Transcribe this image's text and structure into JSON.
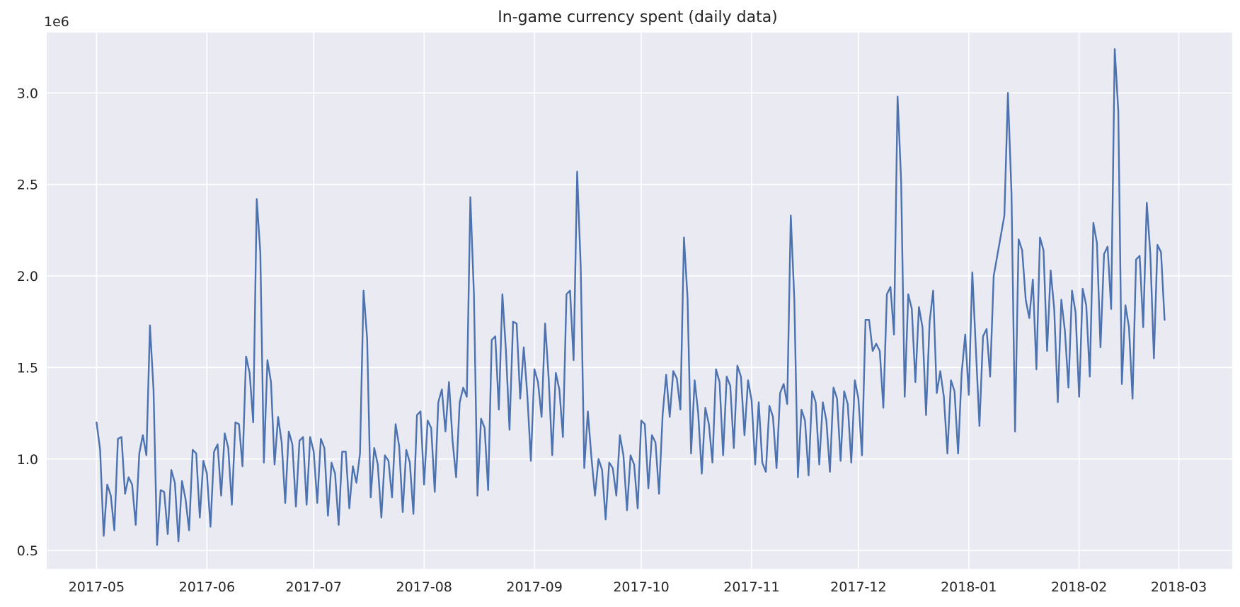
{
  "chart_data": {
    "type": "line",
    "title": "In-game currency spent (daily data)",
    "xlabel": "",
    "ylabel": "",
    "y_offset_label": "1e6",
    "grid": true,
    "legend": "none",
    "colors": {
      "background": "#eaeaf2",
      "grid": "#ffffff",
      "line": "#4c72b0",
      "text": "#262626"
    },
    "xlim": [
      "2017-04-17",
      "2018-03-16"
    ],
    "ylim": [
      0.4,
      3.33
    ],
    "x_tick_labels": [
      "2017-05",
      "2017-06",
      "2017-07",
      "2017-08",
      "2017-09",
      "2017-10",
      "2017-11",
      "2017-12",
      "2018-01",
      "2018-02",
      "2018-03"
    ],
    "y_tick_labels": [
      "0.5",
      "1.0",
      "1.5",
      "2.0",
      "2.5",
      "3.0"
    ],
    "start_date": "2017-05-01",
    "series": [
      {
        "values": [
          1.2,
          1.05,
          0.58,
          0.86,
          0.8,
          0.61,
          1.11,
          1.12,
          0.81,
          0.9,
          0.86,
          0.64,
          1.03,
          1.13,
          1.02,
          1.73,
          1.38,
          0.53,
          0.83,
          0.82,
          0.59,
          0.94,
          0.87,
          0.55,
          0.88,
          0.78,
          0.61,
          1.05,
          1.03,
          0.68,
          0.99,
          0.92,
          0.63,
          1.04,
          1.08,
          0.8,
          1.14,
          1.06,
          0.75,
          1.2,
          1.19,
          0.96,
          1.56,
          1.47,
          1.2,
          2.42,
          2.13,
          0.98,
          1.54,
          1.42,
          0.97,
          1.23,
          1.09,
          0.76,
          1.15,
          1.08,
          0.74,
          1.1,
          1.12,
          0.75,
          1.12,
          1.04,
          0.76,
          1.11,
          1.06,
          0.69,
          0.98,
          0.92,
          0.64,
          1.04,
          1.04,
          0.73,
          0.96,
          0.87,
          1.03,
          1.92,
          1.66,
          0.79,
          1.06,
          0.97,
          0.68,
          1.02,
          0.99,
          0.79,
          1.19,
          1.07,
          0.71,
          1.05,
          0.98,
          0.7,
          1.24,
          1.26,
          0.86,
          1.21,
          1.17,
          0.82,
          1.31,
          1.38,
          1.15,
          1.42,
          1.1,
          0.9,
          1.31,
          1.39,
          1.34,
          2.43,
          1.9,
          0.8,
          1.22,
          1.17,
          0.83,
          1.65,
          1.67,
          1.27,
          1.9,
          1.59,
          1.16,
          1.75,
          1.74,
          1.33,
          1.61,
          1.35,
          0.99,
          1.49,
          1.42,
          1.23,
          1.74,
          1.44,
          1.02,
          1.47,
          1.38,
          1.12,
          1.9,
          1.92,
          1.54,
          2.57,
          2.05,
          0.95,
          1.26,
          1.01,
          0.8,
          1.0,
          0.94,
          0.67,
          0.98,
          0.95,
          0.8,
          1.13,
          1.02,
          0.72,
          1.02,
          0.97,
          0.73,
          1.21,
          1.19,
          0.84,
          1.13,
          1.09,
          0.81,
          1.24,
          1.46,
          1.23,
          1.48,
          1.44,
          1.27,
          2.21,
          1.88,
          1.03,
          1.43,
          1.25,
          0.92,
          1.28,
          1.19,
          0.98,
          1.49,
          1.42,
          1.02,
          1.45,
          1.4,
          1.06,
          1.51,
          1.45,
          1.13,
          1.43,
          1.32,
          0.97,
          1.31,
          0.98,
          0.93,
          1.29,
          1.23,
          0.95,
          1.36,
          1.41,
          1.3,
          2.33,
          1.87,
          0.9,
          1.27,
          1.21,
          0.91,
          1.37,
          1.31,
          0.97,
          1.31,
          1.21,
          0.93,
          1.39,
          1.33,
          0.99,
          1.37,
          1.3,
          0.98,
          1.43,
          1.33,
          1.02,
          1.76,
          1.76,
          1.59,
          1.63,
          1.59,
          1.28,
          1.9,
          1.94,
          1.68,
          2.98,
          2.52,
          1.34,
          1.9,
          1.82,
          1.42,
          1.83,
          1.72,
          1.24,
          1.75,
          1.92,
          1.36,
          1.48,
          1.34,
          1.03,
          1.43,
          1.37,
          1.03,
          1.47,
          1.68,
          1.35,
          2.02,
          1.6,
          1.18,
          1.67,
          1.71,
          1.45,
          2.0,
          2.11,
          2.22,
          2.33,
          3.0,
          2.45,
          1.15,
          2.2,
          2.14,
          1.87,
          1.77,
          1.98,
          1.49,
          2.21,
          2.14,
          1.59,
          2.03,
          1.82,
          1.31,
          1.87,
          1.7,
          1.39,
          1.92,
          1.8,
          1.34,
          1.93,
          1.84,
          1.45,
          2.29,
          2.18,
          1.61,
          2.12,
          2.16,
          1.82,
          3.24,
          2.9,
          1.41,
          1.84,
          1.72,
          1.33,
          2.09,
          2.11,
          1.72,
          2.4,
          2.12,
          1.55,
          2.17,
          2.13,
          1.76
        ]
      }
    ]
  }
}
